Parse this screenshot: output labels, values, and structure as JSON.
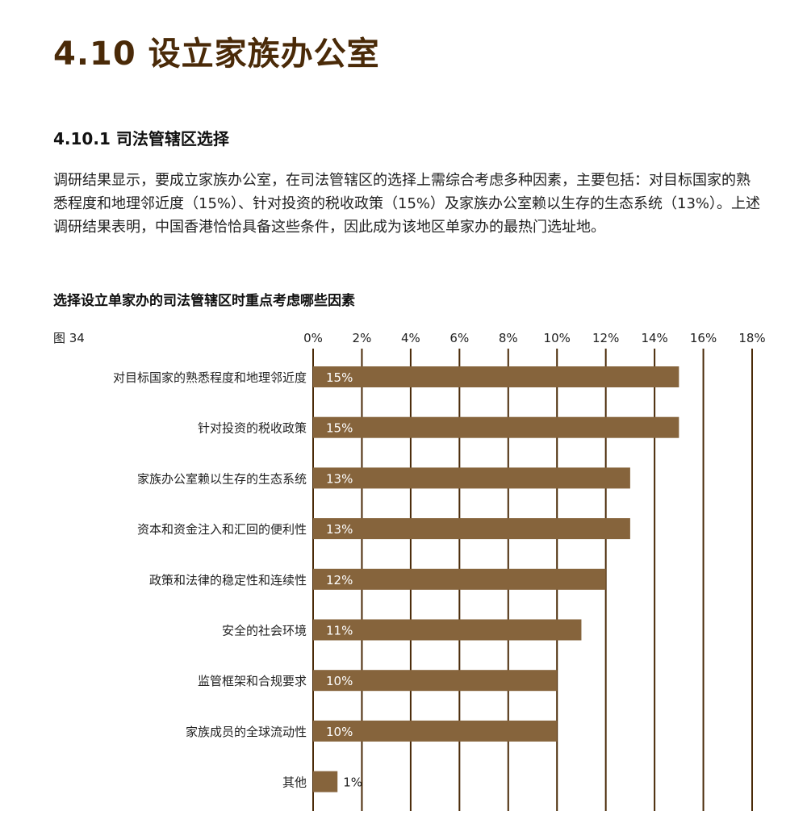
{
  "heading": "4.10 设立家族办公室",
  "subheading": "4.10.1 司法管辖区选择",
  "paragraph": "调研结果显示，要成立家族办公室，在司法管辖区的选择上需综合考虑多种因素，主要包括：对目标国家的熟悉程度和地理邻近度（15%）、针对投资的税收政策（15%）及家族办公室赖以生存的生态系统（13%）。上述调研结果表明，中国香港恰恰具备这些条件，因此成为该地区单家办的最热门选址地。",
  "figure_label": "图 34",
  "chart_data": {
    "type": "bar",
    "orientation": "horizontal",
    "title": "选择设立单家办的司法管辖区时重点考虑哪些因素",
    "categories": [
      "对目标国家的熟悉程度和地理邻近度",
      "针对投资的税收政策",
      "家族办公室赖以生存的生态系统",
      "资本和资金注入和汇回的便利性",
      "政策和法律的稳定性和连续性",
      "安全的社会环境",
      "监管框架和合规要求",
      "家族成员的全球流动性",
      "其他"
    ],
    "values": [
      15,
      15,
      13,
      13,
      12,
      11,
      10,
      10,
      1
    ],
    "data_labels": [
      "15%",
      "15%",
      "13%",
      "13%",
      "12%",
      "11%",
      "10%",
      "10%",
      "1%"
    ],
    "xlim": [
      0,
      18
    ],
    "ticks": [
      0,
      2,
      4,
      6,
      8,
      10,
      12,
      14,
      16,
      18
    ],
    "tick_labels": [
      "0%",
      "2%",
      "4%",
      "6%",
      "8%",
      "10%",
      "12%",
      "14%",
      "16%",
      "18%"
    ],
    "grid": true,
    "axis_position": "top",
    "colors": {
      "bar": "#86643c",
      "grid": "#4a2a08"
    }
  }
}
